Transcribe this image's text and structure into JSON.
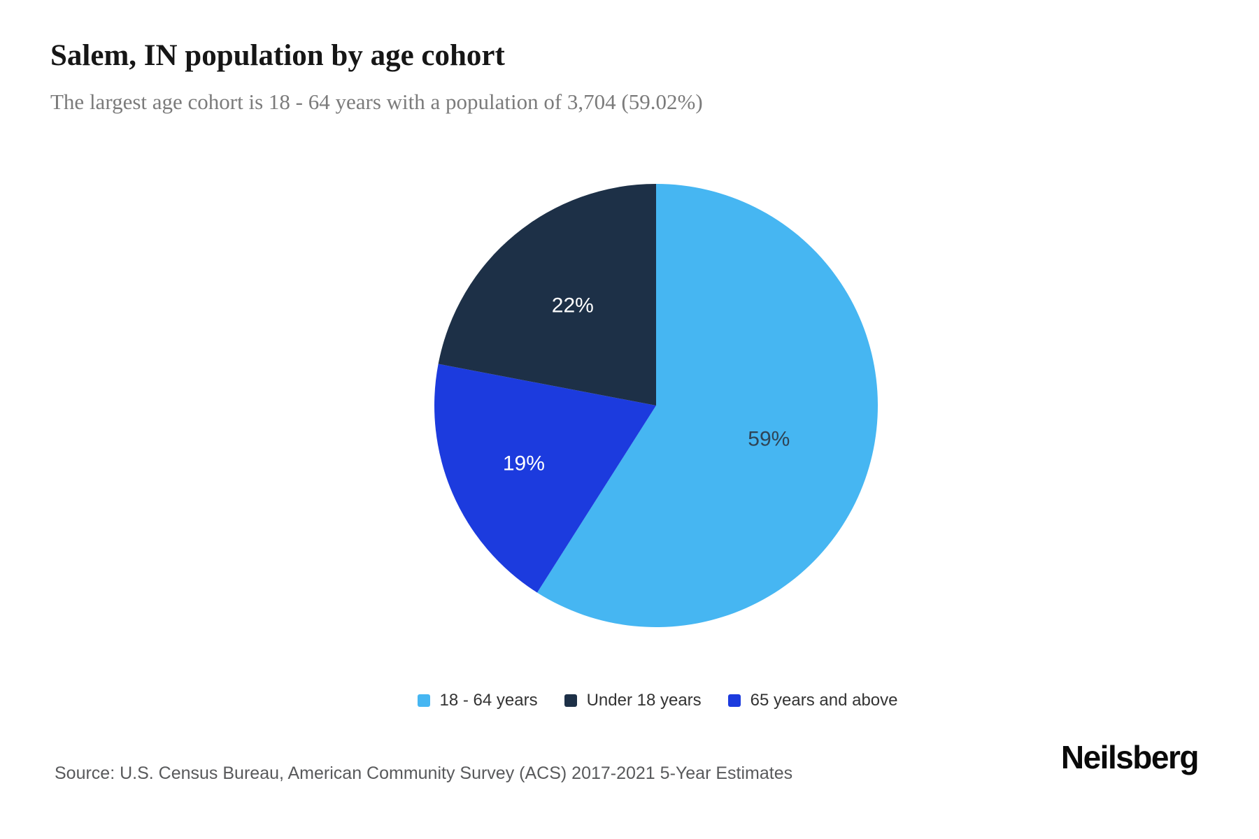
{
  "header": {
    "title": "Salem, IN population by age cohort",
    "subtitle": "The largest age cohort is 18 - 64 years with a population of 3,704 (59.02%)"
  },
  "chart_data": {
    "type": "pie",
    "title": "Salem, IN population by age cohort",
    "start_angle_deg": 0,
    "direction": "clockwise",
    "slices": [
      {
        "label": "18 - 64 years",
        "value": 59.02,
        "display": "59%",
        "color": "#46B6F2",
        "label_color": "#2F4456",
        "label_distance": 0.53
      },
      {
        "label": "65 years and above",
        "value": 19.0,
        "display": "19%",
        "color": "#1C3BDE",
        "label_color": "#FFFFFF",
        "label_distance": 0.65
      },
      {
        "label": "Under 18 years",
        "value": 22.0,
        "display": "22%",
        "color": "#1D3047",
        "label_color": "#FFFFFF",
        "label_distance": 0.59
      }
    ],
    "legend": [
      {
        "label": "18 - 64 years",
        "color": "#46B6F2"
      },
      {
        "label": "Under 18 years",
        "color": "#1D3047"
      },
      {
        "label": "65 years and above",
        "color": "#1C3BDE"
      }
    ],
    "legend_position": "bottom"
  },
  "footer": {
    "source": "Source: U.S. Census Bureau, American Community Survey (ACS) 2017-2021 5-Year Estimates",
    "brand": "Neilsberg"
  }
}
